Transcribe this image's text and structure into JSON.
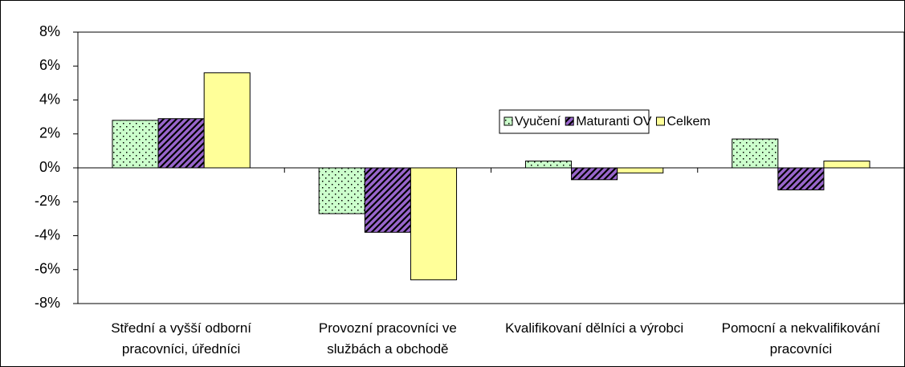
{
  "chart_data": {
    "type": "bar",
    "categories": [
      "Střední a vyšší odborní pracovníci, úředníci",
      "Provozní pracovníci ve službách a obchodě",
      "Kvalifikovaní dělníci a výrobci",
      "Pomocní a nekvalifikování pracovníci"
    ],
    "series": [
      {
        "name": "Vyučení",
        "color": "#ccffcc",
        "pattern": "dots",
        "values": [
          2.8,
          -2.7,
          0.4,
          1.7
        ]
      },
      {
        "name": "Maturanti OV",
        "color": "#9966cc",
        "pattern": "hatch",
        "values": [
          2.9,
          -3.8,
          -0.7,
          -1.3
        ]
      },
      {
        "name": "Celkem",
        "color": "#ffff99",
        "pattern": "solid",
        "values": [
          5.6,
          -6.6,
          -0.3,
          0.4
        ]
      }
    ],
    "ylim": [
      -8,
      8
    ],
    "yticks": [
      {
        "value": -8,
        "label": "-8%"
      },
      {
        "value": -6,
        "label": "-6%"
      },
      {
        "value": -4,
        "label": "-4%"
      },
      {
        "value": -2,
        "label": "-2%"
      },
      {
        "value": 0,
        "label": "0%"
      },
      {
        "value": 2,
        "label": "2%"
      },
      {
        "value": 4,
        "label": "4%"
      },
      {
        "value": 6,
        "label": "6%"
      },
      {
        "value": 8,
        "label": "8%"
      }
    ],
    "grid": false,
    "legend": "top-right"
  }
}
